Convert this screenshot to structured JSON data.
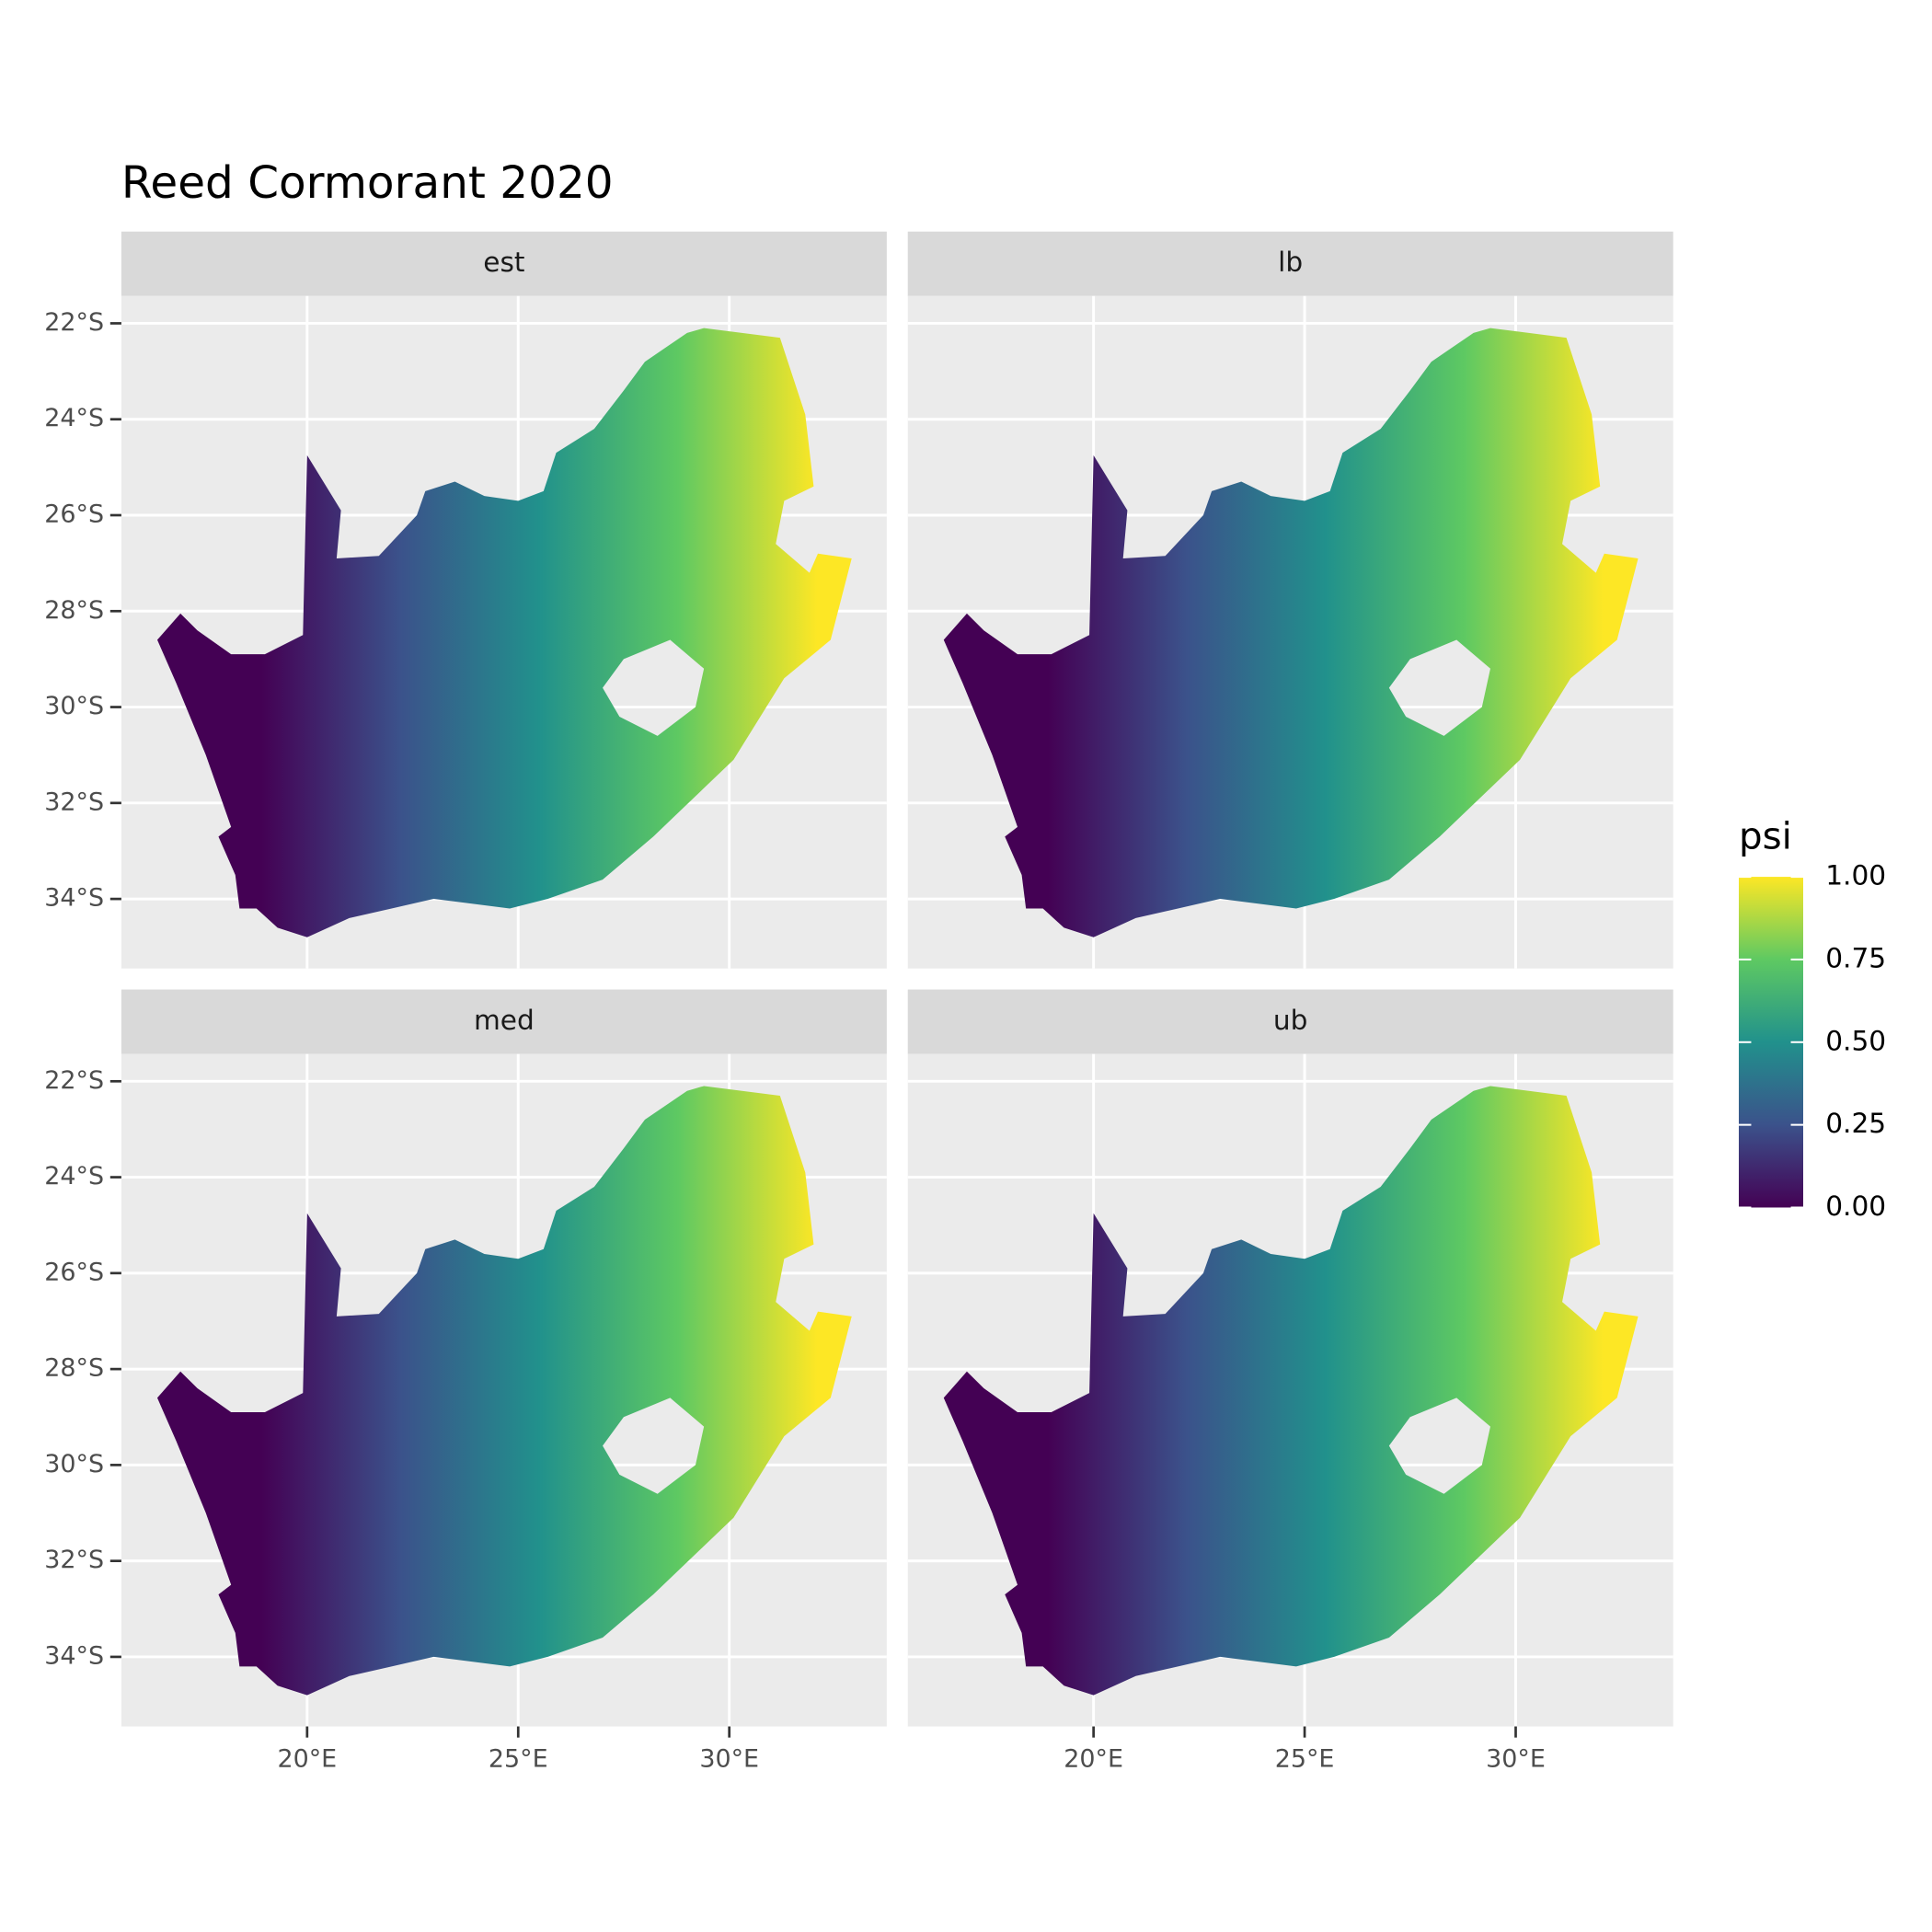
{
  "chart_data": {
    "type": "map",
    "title": "Reed Cormorant 2020",
    "facets": [
      "est",
      "lb",
      "med",
      "ub"
    ],
    "xlim": [
      15.6,
      33.73
    ],
    "ylim": [
      -35.45,
      -21.43
    ],
    "xticks": [
      {
        "value": 20,
        "label": "20°E"
      },
      {
        "value": 25,
        "label": "25°E"
      },
      {
        "value": 30,
        "label": "30°E"
      }
    ],
    "yticks": [
      {
        "value": -22,
        "label": "22°S"
      },
      {
        "value": -24,
        "label": "24°S"
      },
      {
        "value": -26,
        "label": "26°S"
      },
      {
        "value": -28,
        "label": "28°S"
      },
      {
        "value": -30,
        "label": "30°S"
      },
      {
        "value": -32,
        "label": "32°S"
      },
      {
        "value": -34,
        "label": "34°S"
      }
    ],
    "grid": true,
    "legend": {
      "title": "psi",
      "lim": [
        0,
        1
      ],
      "ticks": [
        {
          "value": 0,
          "label": "0.00"
        },
        0.25,
        {
          "value": 0.5,
          "label": "0.50"
        },
        0.75,
        {
          "value": 1,
          "label": "1.00"
        }
      ],
      "colorscale": [
        "#440154",
        "#3b528b",
        "#21918c",
        "#5ec962",
        "#fde725"
      ]
    }
  }
}
